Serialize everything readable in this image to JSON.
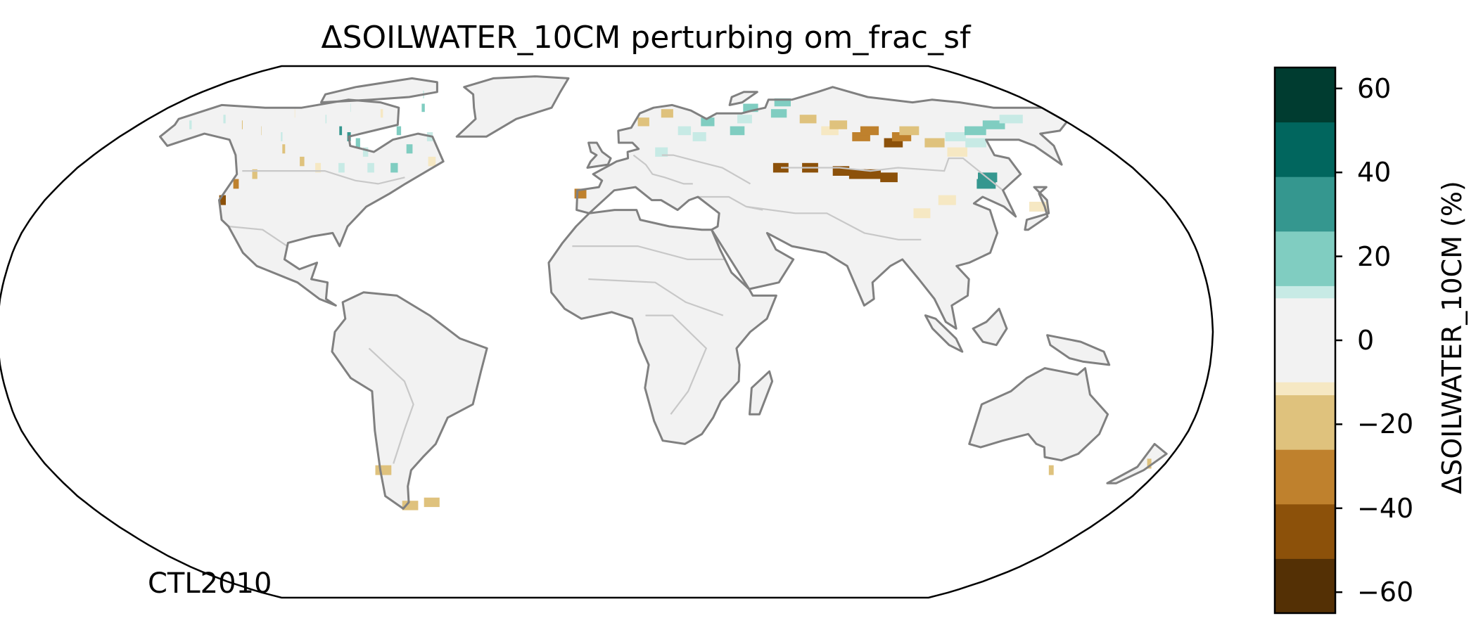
{
  "title": "ΔSOILWATER_10CM perturbing om_frac_sf",
  "run_label": "CTL2010",
  "projection": "robinson",
  "background_color": "#f2f2f2",
  "coastline_color": "#808080",
  "border_color": "#c8c8c8",
  "colorbar": {
    "label": "ΔSOILWATER_10CM (%)",
    "range": [
      -65,
      65
    ],
    "bin_edges": [
      -65,
      -52,
      -39,
      -26,
      -13,
      0,
      13,
      26,
      39,
      52,
      65
    ],
    "colors": [
      "#543005",
      "#8c510a",
      "#bf812d",
      "#dfc27d",
      "#f6e8c3",
      "#c7eae5",
      "#80cdc1",
      "#35978f",
      "#01665e",
      "#003c30"
    ],
    "zero_band_color": "#f2f2f2",
    "ticks": [
      {
        "value": 60,
        "text": "60"
      },
      {
        "value": 40,
        "text": "40"
      },
      {
        "value": 20,
        "text": "20"
      },
      {
        "value": 0,
        "text": "0"
      },
      {
        "value": -20,
        "text": "−20"
      },
      {
        "value": -40,
        "text": "−40"
      },
      {
        "value": -60,
        "text": "−60"
      }
    ]
  },
  "anomaly_cells": [
    {
      "lon": -100,
      "lat": 62,
      "value": 28
    },
    {
      "lon": -95,
      "lat": 60,
      "value": 30
    },
    {
      "lon": -90,
      "lat": 58,
      "value": 18
    },
    {
      "lon": -85,
      "lat": 55,
      "value": 12
    },
    {
      "lon": -110,
      "lat": 66,
      "value": 10
    },
    {
      "lon": -120,
      "lat": 60,
      "value": 8
    },
    {
      "lon": -130,
      "lat": 62,
      "value": -15
    },
    {
      "lon": -140,
      "lat": 64,
      "value": -20
    },
    {
      "lon": -150,
      "lat": 66,
      "value": 10
    },
    {
      "lon": -160,
      "lat": 64,
      "value": 12
    },
    {
      "lon": -125,
      "lat": 68,
      "value": -8
    },
    {
      "lon": -115,
      "lat": 56,
      "value": -18
    },
    {
      "lon": -105,
      "lat": 52,
      "value": -25
    },
    {
      "lon": -98,
      "lat": 50,
      "value": -12
    },
    {
      "lon": -90,
      "lat": 50,
      "value": 10
    },
    {
      "lon": -80,
      "lat": 50,
      "value": 12
    },
    {
      "lon": -72,
      "lat": 50,
      "value": 15
    },
    {
      "lon": -70,
      "lat": 56,
      "value": 18
    },
    {
      "lon": -78,
      "lat": 62,
      "value": 22
    },
    {
      "lon": -65,
      "lat": 60,
      "value": 10
    },
    {
      "lon": -60,
      "lat": 52,
      "value": -10
    },
    {
      "lon": -122,
      "lat": 45,
      "value": -35
    },
    {
      "lon": -123,
      "lat": 40,
      "value": -45
    },
    {
      "lon": -118,
      "lat": 48,
      "value": -18
    },
    {
      "lon": -105,
      "lat": 70,
      "value": 12
    },
    {
      "lon": -90,
      "lat": 68,
      "value": -12
    },
    {
      "lon": -75,
      "lat": 70,
      "value": 14
    },
    {
      "lon": -80,
      "lat": 75,
      "value": 8
    },
    {
      "lon": 15,
      "lat": 65,
      "value": -20
    },
    {
      "lon": 25,
      "lat": 68,
      "value": -25
    },
    {
      "lon": 30,
      "lat": 62,
      "value": 10
    },
    {
      "lon": 35,
      "lat": 60,
      "value": 12
    },
    {
      "lon": 40,
      "lat": 65,
      "value": 15
    },
    {
      "lon": 50,
      "lat": 62,
      "value": 18
    },
    {
      "lon": 55,
      "lat": 66,
      "value": 12
    },
    {
      "lon": 60,
      "lat": 70,
      "value": 22
    },
    {
      "lon": 70,
      "lat": 68,
      "value": 25
    },
    {
      "lon": 75,
      "lat": 72,
      "value": 20
    },
    {
      "lon": 80,
      "lat": 66,
      "value": -15
    },
    {
      "lon": 85,
      "lat": 62,
      "value": -10
    },
    {
      "lon": 90,
      "lat": 64,
      "value": -22
    },
    {
      "lon": 95,
      "lat": 60,
      "value": -30
    },
    {
      "lon": 100,
      "lat": 62,
      "value": -35
    },
    {
      "lon": 105,
      "lat": 58,
      "value": -40
    },
    {
      "lon": 110,
      "lat": 60,
      "value": -30
    },
    {
      "lon": 115,
      "lat": 62,
      "value": -25
    },
    {
      "lon": 120,
      "lat": 58,
      "value": -20
    },
    {
      "lon": 125,
      "lat": 55,
      "value": -12
    },
    {
      "lon": 130,
      "lat": 60,
      "value": 10
    },
    {
      "lon": 135,
      "lat": 58,
      "value": 12
    },
    {
      "lon": 140,
      "lat": 62,
      "value": 14
    },
    {
      "lon": 150,
      "lat": 64,
      "value": 15
    },
    {
      "lon": 160,
      "lat": 66,
      "value": 12
    },
    {
      "lon": 128,
      "lat": 47,
      "value": 35
    },
    {
      "lon": 126,
      "lat": 45,
      "value": 30
    },
    {
      "lon": 85,
      "lat": 48,
      "value": -45
    },
    {
      "lon": 90,
      "lat": 48,
      "value": -50
    },
    {
      "lon": 95,
      "lat": 47,
      "value": -40
    },
    {
      "lon": 80,
      "lat": 49,
      "value": -45
    },
    {
      "lon": 70,
      "lat": 50,
      "value": -45
    },
    {
      "lon": 60,
      "lat": 50,
      "value": -45
    },
    {
      "lon": 100,
      "lat": 36,
      "value": -12
    },
    {
      "lon": 110,
      "lat": 40,
      "value": -10
    },
    {
      "lon": 138,
      "lat": 38,
      "value": -10
    },
    {
      "lon": 20,
      "lat": 55,
      "value": 8
    },
    {
      "lon": -8,
      "lat": 42,
      "value": -30
    },
    {
      "lon": 175,
      "lat": -40,
      "value": -15
    },
    {
      "lon": 145,
      "lat": -42,
      "value": -18
    },
    {
      "lon": -72,
      "lat": -42,
      "value": -20
    },
    {
      "lon": -68,
      "lat": -53,
      "value": -20
    },
    {
      "lon": -60,
      "lat": -52,
      "value": -25
    }
  ]
}
